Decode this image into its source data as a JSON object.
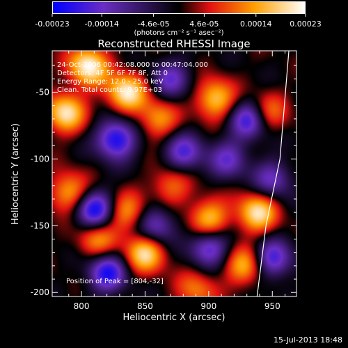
{
  "chart_data": {
    "type": "heatmap",
    "title": "Reconstructed RHESSI Image",
    "xlabel": "Heliocentric X (arcsec)",
    "ylabel": "Heliocentric Y (arcsec)",
    "xlim": [
      777,
      969
    ],
    "ylim": [
      -203,
      -19
    ],
    "x_ticks": [
      800,
      850,
      900,
      950
    ],
    "y_ticks": [
      -50,
      -100,
      -150,
      -200
    ],
    "colorbar": {
      "tick_labels": [
        "-0.00023",
        "-0.00014",
        "-4.6e-05",
        "4.6e-05",
        "0.00014",
        "0.00023"
      ],
      "tick_values": [
        -0.00023,
        -0.00014,
        -4.6e-05,
        4.6e-05,
        0.00014,
        0.00023
      ],
      "unit": "(photons cm⁻² s⁻¹ asec⁻²)",
      "range": [
        -0.00023,
        0.00023
      ],
      "colors": [
        "#0000ff",
        "#6a2ec4",
        "#000000",
        "#e01010",
        "#ffa000",
        "#ffffff"
      ]
    },
    "annotations": [
      "24-Oct-2006 00:42:08.000 to 00:47:04.000",
      "Detectors: 4F 5F 6F 7F 8F, Att 0",
      "Energy Range: 12.0 - 25.0 keV",
      "Clean.   Total counts: 9.97E+03"
    ],
    "peak_label": "Position of Peak = [804,-32]",
    "peak": [
      804,
      -32
    ],
    "limb_curve": [
      [
        963,
        -19
      ],
      [
        956,
        -100
      ],
      [
        945,
        -150
      ],
      [
        938,
        -203
      ]
    ],
    "hot_spots": [
      {
        "x": 805,
        "y": -30,
        "level": 1.0
      },
      {
        "x": 835,
        "y": -50,
        "level": 0.95
      },
      {
        "x": 787,
        "y": -65,
        "level": 0.9
      },
      {
        "x": 860,
        "y": -70,
        "level": 0.6
      },
      {
        "x": 905,
        "y": -55,
        "level": 0.8
      },
      {
        "x": 945,
        "y": -65,
        "level": 0.6
      },
      {
        "x": 790,
        "y": -125,
        "level": 0.7
      },
      {
        "x": 835,
        "y": -140,
        "level": 0.6
      },
      {
        "x": 870,
        "y": -120,
        "level": 0.5
      },
      {
        "x": 900,
        "y": -145,
        "level": 0.8
      },
      {
        "x": 938,
        "y": -140,
        "level": 0.9
      },
      {
        "x": 850,
        "y": -170,
        "level": 0.9
      },
      {
        "x": 812,
        "y": -160,
        "level": 0.6
      },
      {
        "x": 928,
        "y": -180,
        "level": 0.7
      },
      {
        "x": 890,
        "y": -198,
        "level": 0.5
      }
    ],
    "cold_spots": [
      {
        "x": 827,
        "y": -85,
        "level": 1.0
      },
      {
        "x": 880,
        "y": -95,
        "level": 0.7
      },
      {
        "x": 932,
        "y": -70,
        "level": 0.9
      },
      {
        "x": 810,
        "y": -138,
        "level": 1.0
      },
      {
        "x": 858,
        "y": -150,
        "level": 0.7
      },
      {
        "x": 915,
        "y": -100,
        "level": 0.6
      },
      {
        "x": 900,
        "y": -165,
        "level": 0.8
      },
      {
        "x": 820,
        "y": -185,
        "level": 0.9
      },
      {
        "x": 870,
        "y": -40,
        "level": 0.6
      },
      {
        "x": 950,
        "y": -115,
        "level": 0.6
      },
      {
        "x": 950,
        "y": -175,
        "level": 0.8
      }
    ]
  },
  "footer": {
    "date": "15-Jul-2013 18:48"
  }
}
